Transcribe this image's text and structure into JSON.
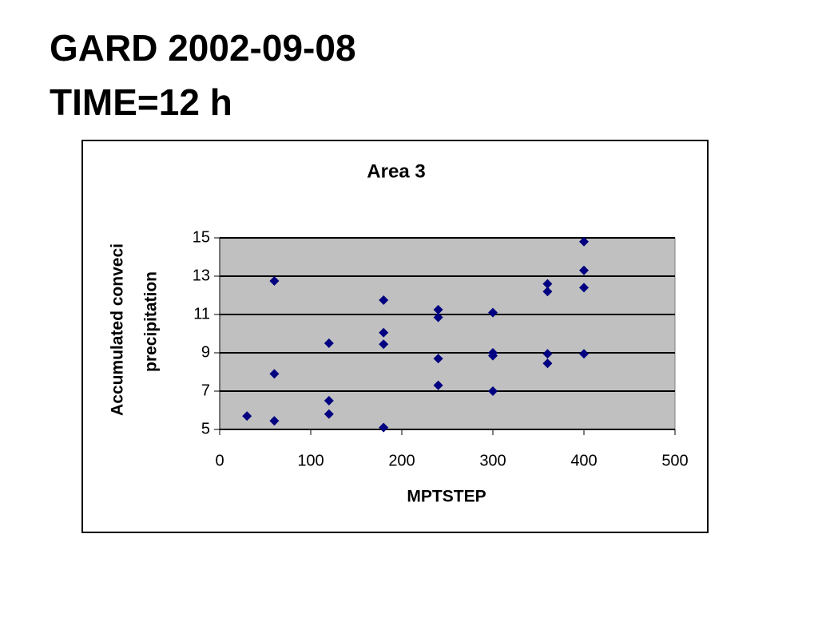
{
  "slide": {
    "title_lines": [
      "GARD 2002-09-08",
      "TIME=12 h"
    ]
  },
  "chart_data": {
    "type": "scatter",
    "title": "Area 3",
    "xlabel": "MPTSTEP",
    "ylabel": [
      "Accumulated conveci",
      "precipitation"
    ],
    "series": [
      {
        "color": "#000080",
        "x": [
          30,
          60,
          60,
          60,
          120,
          120,
          120,
          180,
          180,
          180,
          180,
          240,
          240,
          240,
          240,
          300,
          300,
          300,
          300,
          360,
          360,
          360,
          360,
          400,
          400,
          400,
          400
        ],
        "values": [
          5.7,
          12.75,
          7.9,
          5.45,
          9.5,
          6.5,
          5.8,
          11.75,
          10.05,
          9.45,
          5.1,
          11.25,
          10.85,
          8.7,
          7.3,
          11.1,
          9,
          8.85,
          7,
          12.6,
          12.2,
          8.95,
          8.45,
          14.8,
          13.3,
          12.4,
          8.95
        ]
      }
    ],
    "xlim": [
      0,
      500
    ],
    "xticks": [
      0,
      100,
      200,
      300,
      400,
      500
    ],
    "ylim": [
      5,
      15
    ],
    "yticks": [
      5,
      7,
      9,
      11,
      13,
      15
    ],
    "grid": true,
    "plot_background": "#c0c0c0"
  }
}
